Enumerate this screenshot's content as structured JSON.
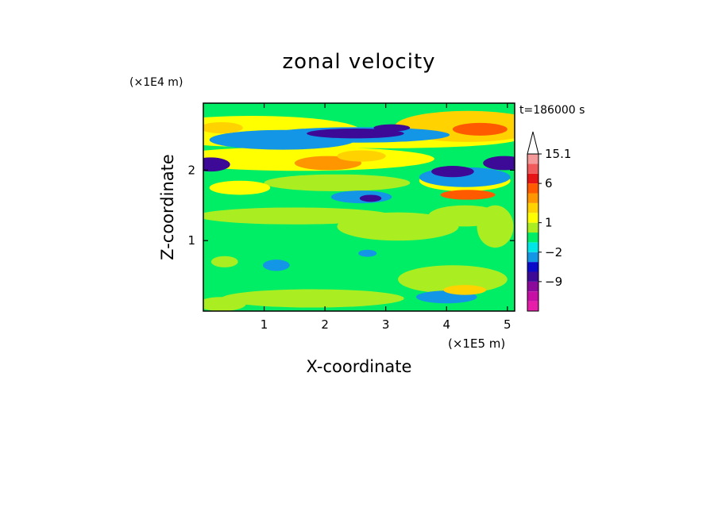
{
  "chart_data": {
    "type": "heatmap",
    "title": "zonal velocity",
    "xlabel": "X-coordinate",
    "ylabel": "Z-coordinate",
    "x_scale_label": "(×1E5 m)",
    "y_scale_label": "(×1E4 m)",
    "time_label": "t=186000 s",
    "xlim": [
      0,
      5.12
    ],
    "ylim": [
      0,
      2.95
    ],
    "x_ticks": [
      1,
      2,
      3,
      4,
      5
    ],
    "y_ticks": [
      1,
      2
    ],
    "colorbar": {
      "extend": "max",
      "levels": [
        -15,
        -12,
        -9,
        -6,
        -3,
        -2,
        -1,
        0,
        1,
        2,
        3,
        4.5,
        6,
        9,
        12,
        15.1
      ],
      "colors": [
        "#e61eaa",
        "#c80fa5",
        "#8c0a9b",
        "#3c0a96",
        "#0a0ac8",
        "#1496e6",
        "#00e6e6",
        "#00ee66",
        "#aaee22",
        "#ffff00",
        "#ffd200",
        "#ff9600",
        "#ff5a00",
        "#e61414",
        "#f05a5a",
        "#f59a9a"
      ],
      "extend_color": "#ffffff",
      "tick_labels": [
        {
          "value": 15.1,
          "text": "15.1"
        },
        {
          "value": 6,
          "text": "6"
        },
        {
          "value": 1,
          "text": "1"
        },
        {
          "value": -2,
          "text": "−2"
        },
        {
          "value": -9,
          "text": "−9"
        }
      ]
    },
    "features": [
      {
        "cx": 0.8,
        "cy": 2.55,
        "rx": 1.8,
        "ry": 0.22,
        "v": 2.0
      },
      {
        "cx": 3.0,
        "cy": 2.45,
        "rx": 2.2,
        "ry": 0.14,
        "v": 2.2
      },
      {
        "cx": 4.35,
        "cy": 2.62,
        "rx": 1.2,
        "ry": 0.22,
        "v": 3.2
      },
      {
        "cx": 4.55,
        "cy": 2.58,
        "rx": 0.45,
        "ry": 0.09,
        "v": 7.5
      },
      {
        "cx": 0.3,
        "cy": 2.6,
        "rx": 0.35,
        "ry": 0.08,
        "v": 4.2
      },
      {
        "cx": 1.3,
        "cy": 2.43,
        "rx": 1.2,
        "ry": 0.14,
        "v": -1.5
      },
      {
        "cx": 2.55,
        "cy": 2.5,
        "rx": 1.5,
        "ry": 0.11,
        "v": -1.4
      },
      {
        "cx": 2.5,
        "cy": 2.52,
        "rx": 0.8,
        "ry": 0.07,
        "v": -5.0
      },
      {
        "cx": 3.1,
        "cy": 2.6,
        "rx": 0.3,
        "ry": 0.05,
        "v": -4.0
      },
      {
        "cx": 1.6,
        "cy": 2.16,
        "rx": 2.2,
        "ry": 0.17,
        "v": 2.2
      },
      {
        "cx": 2.05,
        "cy": 2.1,
        "rx": 0.55,
        "ry": 0.1,
        "v": 4.6
      },
      {
        "cx": 2.6,
        "cy": 2.2,
        "rx": 0.4,
        "ry": 0.08,
        "v": 3.2
      },
      {
        "cx": 0.12,
        "cy": 2.08,
        "rx": 0.32,
        "ry": 0.1,
        "v": -4.0
      },
      {
        "cx": 4.3,
        "cy": 1.85,
        "rx": 0.75,
        "ry": 0.15,
        "v": 2.4
      },
      {
        "cx": 4.35,
        "cy": 1.65,
        "rx": 0.45,
        "ry": 0.07,
        "v": 7.5
      },
      {
        "cx": 4.3,
        "cy": 1.9,
        "rx": 0.75,
        "ry": 0.14,
        "v": -1.5
      },
      {
        "cx": 4.1,
        "cy": 1.98,
        "rx": 0.35,
        "ry": 0.08,
        "v": -4.5
      },
      {
        "cx": 4.95,
        "cy": 2.1,
        "rx": 0.35,
        "ry": 0.1,
        "v": -4.0
      },
      {
        "cx": 2.6,
        "cy": 1.62,
        "rx": 0.5,
        "ry": 0.09,
        "v": -1.4
      },
      {
        "cx": 2.75,
        "cy": 1.6,
        "rx": 0.18,
        "ry": 0.05,
        "v": -4.0
      },
      {
        "cx": 2.2,
        "cy": 1.82,
        "rx": 1.2,
        "ry": 0.12,
        "v": 1.5
      },
      {
        "cx": 0.6,
        "cy": 1.75,
        "rx": 0.5,
        "ry": 0.1,
        "v": 2.3
      },
      {
        "cx": 1.5,
        "cy": 1.35,
        "rx": 1.6,
        "ry": 0.12,
        "v": 1.5
      },
      {
        "cx": 3.2,
        "cy": 1.2,
        "rx": 1.0,
        "ry": 0.2,
        "v": 1.5
      },
      {
        "cx": 4.3,
        "cy": 1.35,
        "rx": 0.6,
        "ry": 0.15,
        "v": 1.6
      },
      {
        "cx": 0.35,
        "cy": 0.7,
        "rx": 0.22,
        "ry": 0.08,
        "v": 1.5
      },
      {
        "cx": 1.2,
        "cy": 0.65,
        "rx": 0.22,
        "ry": 0.08,
        "v": -1.5
      },
      {
        "cx": 2.7,
        "cy": 0.82,
        "rx": 0.15,
        "ry": 0.05,
        "v": -1.5
      },
      {
        "cx": 1.8,
        "cy": 0.18,
        "rx": 1.5,
        "ry": 0.13,
        "v": 1.5
      },
      {
        "cx": 0.3,
        "cy": 0.1,
        "rx": 0.4,
        "ry": 0.1,
        "v": 1.5
      },
      {
        "cx": 4.1,
        "cy": 0.45,
        "rx": 0.9,
        "ry": 0.2,
        "v": 1.8
      },
      {
        "cx": 4.3,
        "cy": 0.3,
        "rx": 0.35,
        "ry": 0.07,
        "v": 3.0
      },
      {
        "cx": 4.0,
        "cy": 0.2,
        "rx": 0.5,
        "ry": 0.09,
        "v": -1.5
      },
      {
        "cx": 4.8,
        "cy": 1.2,
        "rx": 0.3,
        "ry": 0.3,
        "v": 1.5
      }
    ]
  }
}
